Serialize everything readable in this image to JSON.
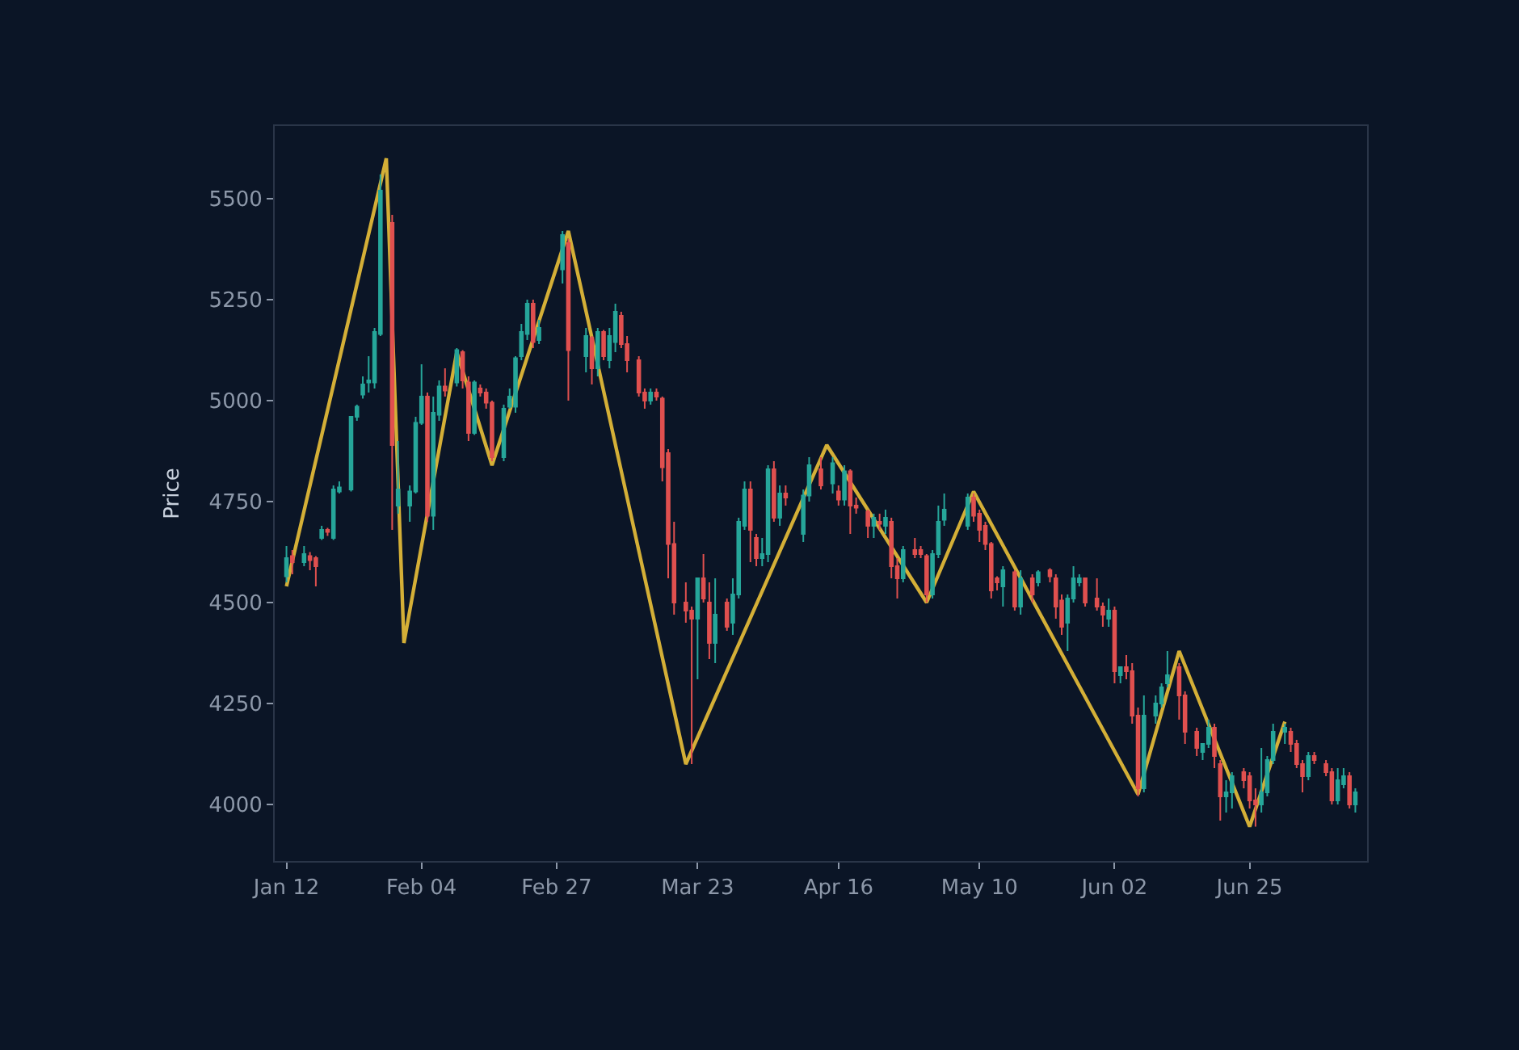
{
  "chart_data": {
    "type": "candlestick",
    "ylabel": "Price",
    "x": [
      "--01-12",
      "--01-13",
      "--01-15",
      "--01-16",
      "--01-17",
      "--01-18",
      "--01-19",
      "--01-20",
      "--01-21",
      "--01-23",
      "--01-24",
      "--01-25",
      "--01-26",
      "--01-27",
      "--01-28",
      "--01-30",
      "--01-31",
      "--02-02",
      "--02-03",
      "--02-04",
      "--02-05",
      "--02-06",
      "--02-07",
      "--02-08",
      "--02-10",
      "--02-11",
      "--02-12",
      "--02-13",
      "--02-14",
      "--02-15",
      "--02-16",
      "--02-18",
      "--02-19",
      "--02-20",
      "--02-21",
      "--02-22",
      "--02-23",
      "--02-24",
      "--02-28",
      "--03-01",
      "--03-04",
      "--03-05",
      "--03-06",
      "--03-07",
      "--03-08",
      "--03-09",
      "--03-10",
      "--03-11",
      "--03-13",
      "--03-14",
      "--03-15",
      "--03-16",
      "--03-17",
      "--03-18",
      "--03-19",
      "--03-21",
      "--03-22",
      "--03-23",
      "--03-24",
      "--03-25",
      "--03-26",
      "--03-28",
      "--03-29",
      "--03-30",
      "--03-31",
      "--04-01",
      "--04-02",
      "--04-03",
      "--04-04",
      "--04-05",
      "--04-06",
      "--04-07",
      "--04-10",
      "--04-11",
      "--04-13",
      "--04-15",
      "--04-16",
      "--04-17",
      "--04-18",
      "--04-19",
      "--04-21",
      "--04-22",
      "--04-23",
      "--04-24",
      "--04-25",
      "--04-26",
      "--04-27",
      "--04-29",
      "--04-30",
      "--05-01",
      "--05-02",
      "--05-03",
      "--05-04",
      "--05-08",
      "--05-09",
      "--05-10",
      "--05-11",
      "--05-12",
      "--05-13",
      "--05-14",
      "--05-16",
      "--05-17",
      "--05-19",
      "--05-20",
      "--05-22",
      "--05-23",
      "--05-24",
      "--05-25",
      "--05-26",
      "--05-27",
      "--05-28",
      "--05-30",
      "--05-31",
      "--06-01",
      "--06-02",
      "--06-03",
      "--06-04",
      "--06-05",
      "--06-06",
      "--06-07",
      "--06-09",
      "--06-10",
      "--06-11",
      "--06-13",
      "--06-14",
      "--06-16",
      "--06-17",
      "--06-18",
      "--06-19",
      "--06-20",
      "--06-21",
      "--06-22",
      "--06-24",
      "--06-25",
      "--06-26",
      "--06-27",
      "--06-28",
      "--06-29",
      "--07-01",
      "--07-02",
      "--07-03",
      "--07-04",
      "--07-05",
      "--07-06",
      "--07-08",
      "--07-09",
      "--07-10",
      "--07-11",
      "--07-12",
      "--07-13"
    ],
    "ohlc": [
      [
        4565,
        4640,
        4550,
        4610
      ],
      [
        4615,
        4630,
        4570,
        4600
      ],
      [
        4600,
        4640,
        4590,
        4620
      ],
      [
        4615,
        4625,
        4580,
        4605
      ],
      [
        4610,
        4615,
        4540,
        4590
      ],
      [
        4660,
        4690,
        4655,
        4680
      ],
      [
        4680,
        4685,
        4665,
        4675
      ],
      [
        4660,
        4790,
        4655,
        4780
      ],
      [
        4775,
        4800,
        4770,
        4785
      ],
      [
        4780,
        4960,
        4775,
        4960
      ],
      [
        4960,
        4990,
        4950,
        4985
      ],
      [
        5015,
        5060,
        5005,
        5040
      ],
      [
        5045,
        5110,
        5020,
        5050
      ],
      [
        5045,
        5180,
        5030,
        5170
      ],
      [
        5165,
        5560,
        5160,
        5520
      ],
      [
        5440,
        5460,
        4680,
        4890
      ],
      [
        4740,
        4900,
        4720,
        4780
      ],
      [
        4740,
        4790,
        4700,
        4775
      ],
      [
        4775,
        4960,
        4770,
        4945
      ],
      [
        4945,
        5090,
        4940,
        5010
      ],
      [
        5010,
        5020,
        4700,
        4715
      ],
      [
        4715,
        5010,
        4680,
        4970
      ],
      [
        4965,
        5050,
        4950,
        5035
      ],
      [
        5035,
        5080,
        5010,
        5025
      ],
      [
        5045,
        5130,
        5035,
        5125
      ],
      [
        5120,
        5125,
        5030,
        5050
      ],
      [
        5045,
        5060,
        4900,
        4920
      ],
      [
        4920,
        5050,
        4915,
        5045
      ],
      [
        5030,
        5040,
        5010,
        5020
      ],
      [
        5020,
        5030,
        4980,
        4995
      ],
      [
        4995,
        5000,
        4850,
        4860
      ],
      [
        4860,
        4990,
        4850,
        4980
      ],
      [
        4985,
        5030,
        4980,
        5010
      ],
      [
        4985,
        5110,
        4970,
        5105
      ],
      [
        5110,
        5190,
        5100,
        5170
      ],
      [
        5165,
        5250,
        5150,
        5240
      ],
      [
        5240,
        5250,
        5130,
        5145
      ],
      [
        5150,
        5200,
        5140,
        5180
      ],
      [
        5325,
        5420,
        5290,
        5410
      ],
      [
        5390,
        5400,
        5000,
        5125
      ],
      [
        5110,
        5180,
        5070,
        5160
      ],
      [
        5155,
        5160,
        5040,
        5080
      ],
      [
        5080,
        5180,
        5060,
        5170
      ],
      [
        5170,
        5175,
        5100,
        5110
      ],
      [
        5100,
        5180,
        5080,
        5160
      ],
      [
        5145,
        5240,
        5120,
        5220
      ],
      [
        5210,
        5220,
        5130,
        5140
      ],
      [
        5140,
        5160,
        5070,
        5100
      ],
      [
        5100,
        5110,
        5010,
        5020
      ],
      [
        5020,
        5030,
        4980,
        5000
      ],
      [
        5000,
        5030,
        4990,
        5020
      ],
      [
        5020,
        5030,
        5000,
        5010
      ],
      [
        5005,
        5010,
        4800,
        4835
      ],
      [
        4870,
        4880,
        4560,
        4645
      ],
      [
        4645,
        4700,
        4470,
        4500
      ],
      [
        4500,
        4550,
        4450,
        4480
      ],
      [
        4480,
        4490,
        4100,
        4460
      ],
      [
        4460,
        4560,
        4310,
        4560
      ],
      [
        4560,
        4620,
        4500,
        4510
      ],
      [
        4500,
        4550,
        4360,
        4400
      ],
      [
        4400,
        4560,
        4350,
        4470
      ],
      [
        4500,
        4510,
        4430,
        4440
      ],
      [
        4450,
        4560,
        4420,
        4520
      ],
      [
        4520,
        4710,
        4510,
        4700
      ],
      [
        4690,
        4800,
        4680,
        4780
      ],
      [
        4780,
        4800,
        4600,
        4680
      ],
      [
        4660,
        4670,
        4590,
        4610
      ],
      [
        4610,
        4660,
        4590,
        4620
      ],
      [
        4620,
        4840,
        4600,
        4830
      ],
      [
        4830,
        4850,
        4700,
        4710
      ],
      [
        4710,
        4790,
        4690,
        4770
      ],
      [
        4770,
        4790,
        4740,
        4760
      ],
      [
        4670,
        4780,
        4650,
        4765
      ],
      [
        4765,
        4860,
        4750,
        4840
      ],
      [
        4830,
        4860,
        4780,
        4790
      ],
      [
        4795,
        4860,
        4770,
        4845
      ],
      [
        4775,
        4790,
        4740,
        4755
      ],
      [
        4755,
        4840,
        4740,
        4825
      ],
      [
        4825,
        4830,
        4670,
        4740
      ],
      [
        4740,
        4760,
        4720,
        4735
      ],
      [
        4725,
        4730,
        4660,
        4690
      ],
      [
        4690,
        4720,
        4660,
        4710
      ],
      [
        4700,
        4720,
        4680,
        4695
      ],
      [
        4690,
        4730,
        4670,
        4710
      ],
      [
        4700,
        4710,
        4560,
        4590
      ],
      [
        4590,
        4610,
        4510,
        4560
      ],
      [
        4560,
        4640,
        4550,
        4630
      ],
      [
        4630,
        4660,
        4610,
        4620
      ],
      [
        4630,
        4640,
        4610,
        4620
      ],
      [
        4615,
        4620,
        4500,
        4520
      ],
      [
        4520,
        4630,
        4510,
        4620
      ],
      [
        4620,
        4740,
        4610,
        4700
      ],
      [
        4705,
        4770,
        4690,
        4730
      ],
      [
        4690,
        4770,
        4680,
        4760
      ],
      [
        4760,
        4770,
        4700,
        4715
      ],
      [
        4720,
        4730,
        4650,
        4680
      ],
      [
        4690,
        4700,
        4630,
        4645
      ],
      [
        4645,
        4650,
        4510,
        4530
      ],
      [
        4560,
        4565,
        4530,
        4550
      ],
      [
        4540,
        4590,
        4490,
        4580
      ],
      [
        4575,
        4580,
        4480,
        4490
      ],
      [
        4490,
        4580,
        4470,
        4560
      ],
      [
        4560,
        4570,
        4500,
        4520
      ],
      [
        4550,
        4580,
        4540,
        4575
      ],
      [
        4580,
        4585,
        4550,
        4565
      ],
      [
        4560,
        4570,
        4460,
        4490
      ],
      [
        4505,
        4520,
        4420,
        4440
      ],
      [
        4450,
        4520,
        4380,
        4510
      ],
      [
        4510,
        4590,
        4500,
        4560
      ],
      [
        4550,
        4570,
        4540,
        4560
      ],
      [
        4560,
        4560,
        4490,
        4500
      ],
      [
        4510,
        4560,
        4480,
        4490
      ],
      [
        4490,
        4500,
        4440,
        4470
      ],
      [
        4460,
        4510,
        4440,
        4480
      ],
      [
        4480,
        4490,
        4300,
        4330
      ],
      [
        4320,
        4340,
        4300,
        4340
      ],
      [
        4340,
        4370,
        4310,
        4330
      ],
      [
        4330,
        4350,
        4200,
        4220
      ],
      [
        4220,
        4240,
        4020,
        4040
      ],
      [
        4040,
        4270,
        4030,
        4220
      ],
      [
        4220,
        4270,
        4200,
        4250
      ],
      [
        4250,
        4300,
        4240,
        4290
      ],
      [
        4300,
        4380,
        4290,
        4320
      ],
      [
        4340,
        4350,
        4210,
        4270
      ],
      [
        4270,
        4280,
        4150,
        4180
      ],
      [
        4180,
        4190,
        4120,
        4140
      ],
      [
        4130,
        4150,
        4110,
        4150
      ],
      [
        4150,
        4210,
        4140,
        4190
      ],
      [
        4190,
        4200,
        4090,
        4120
      ],
      [
        4100,
        4110,
        3960,
        4020
      ],
      [
        4020,
        4060,
        3980,
        4030
      ],
      [
        4030,
        4080,
        3990,
        4070
      ],
      [
        4080,
        4090,
        4040,
        4060
      ],
      [
        4070,
        4080,
        3990,
        4010
      ],
      [
        4010,
        4040,
        3945,
        4000
      ],
      [
        4000,
        4140,
        3980,
        4030
      ],
      [
        4030,
        4120,
        4020,
        4110
      ],
      [
        4110,
        4200,
        4100,
        4180
      ],
      [
        4180,
        4200,
        4150,
        4190
      ],
      [
        4180,
        4190,
        4130,
        4150
      ],
      [
        4150,
        4160,
        4090,
        4100
      ],
      [
        4100,
        4110,
        4030,
        4070
      ],
      [
        4070,
        4130,
        4060,
        4120
      ],
      [
        4120,
        4130,
        4100,
        4110
      ],
      [
        4100,
        4110,
        4070,
        4080
      ],
      [
        4080,
        4090,
        4000,
        4010
      ],
      [
        4010,
        4090,
        4000,
        4060
      ],
      [
        4050,
        4090,
        4040,
        4070
      ],
      [
        4070,
        4080,
        3990,
        4000
      ],
      [
        4000,
        4040,
        3980,
        4030
      ]
    ],
    "colors": [
      "#26a69a",
      "#e0504f",
      "#26a69a",
      "#e0504f",
      "#e0504f",
      "#26a69a",
      "#e0504f",
      "#26a69a",
      "#26a69a",
      "#26a69a",
      "#26a69a",
      "#26a69a",
      "#26a69a",
      "#26a69a",
      "#26a69a",
      "#e0504f",
      "#26a69a",
      "#26a69a",
      "#26a69a",
      "#26a69a",
      "#e0504f",
      "#26a69a",
      "#26a69a",
      "#e0504f",
      "#26a69a",
      "#e0504f",
      "#e0504f",
      "#26a69a",
      "#e0504f",
      "#e0504f",
      "#e0504f",
      "#26a69a",
      "#26a69a",
      "#26a69a",
      "#26a69a",
      "#26a69a",
      "#e0504f",
      "#26a69a",
      "#26a69a",
      "#e0504f",
      "#26a69a",
      "#e0504f",
      "#26a69a",
      "#e0504f",
      "#26a69a",
      "#26a69a",
      "#e0504f",
      "#e0504f",
      "#e0504f",
      "#e0504f",
      "#26a69a",
      "#e0504f",
      "#e0504f",
      "#e0504f",
      "#e0504f",
      "#e0504f",
      "#e0504f",
      "#26a69a",
      "#e0504f",
      "#e0504f",
      "#26a69a",
      "#e0504f",
      "#26a69a",
      "#26a69a",
      "#26a69a",
      "#e0504f",
      "#e0504f",
      "#26a69a",
      "#26a69a",
      "#e0504f",
      "#26a69a",
      "#e0504f",
      "#26a69a",
      "#26a69a",
      "#e0504f",
      "#26a69a",
      "#e0504f",
      "#26a69a",
      "#e0504f",
      "#e0504f",
      "#e0504f",
      "#26a69a",
      "#e0504f",
      "#26a69a",
      "#e0504f",
      "#e0504f",
      "#26a69a",
      "#e0504f",
      "#e0504f",
      "#e0504f",
      "#26a69a",
      "#26a69a",
      "#26a69a",
      "#26a69a",
      "#e0504f",
      "#e0504f",
      "#e0504f",
      "#e0504f",
      "#e0504f",
      "#26a69a",
      "#e0504f",
      "#26a69a",
      "#e0504f",
      "#26a69a",
      "#e0504f",
      "#e0504f",
      "#e0504f",
      "#26a69a",
      "#26a69a",
      "#26a69a",
      "#e0504f",
      "#e0504f",
      "#e0504f",
      "#26a69a",
      "#e0504f",
      "#26a69a",
      "#e0504f",
      "#e0504f",
      "#e0504f",
      "#26a69a",
      "#26a69a",
      "#26a69a",
      "#26a69a",
      "#e0504f",
      "#e0504f",
      "#e0504f",
      "#26a69a",
      "#26a69a",
      "#e0504f",
      "#e0504f",
      "#26a69a",
      "#26a69a",
      "#e0504f",
      "#e0504f",
      "#e0504f",
      "#26a69a",
      "#26a69a",
      "#26a69a",
      "#26a69a",
      "#e0504f",
      "#e0504f",
      "#e0504f",
      "#26a69a",
      "#e0504f",
      "#e0504f",
      "#e0504f",
      "#26a69a",
      "#26a69a",
      "#e0504f",
      "#26a69a"
    ],
    "series": [
      {
        "type": "line",
        "color": "#d4af37",
        "x": [
          "--01-12",
          "--01-29",
          "--02-01",
          "--02-10",
          "--02-16",
          "--03-01",
          "--03-21",
          "--04-14",
          "--05-01",
          "--05-09",
          "--06-06",
          "--06-13",
          "--06-25",
          "--07-01"
        ],
        "values": [
          4540,
          5600,
          4400,
          5120,
          4840,
          5420,
          4100,
          4890,
          4500,
          4775,
          4025,
          4380,
          3945,
          4205
        ]
      }
    ],
    "xlim": [
      "--01-10",
      "--07-15"
    ],
    "xticks": [
      {
        "value": "--01-12",
        "label": "Jan 12"
      },
      {
        "value": "--02-04",
        "label": "Feb 04"
      },
      {
        "value": "--02-27",
        "label": "Feb 27"
      },
      {
        "value": "--03-23",
        "label": "Mar 23"
      },
      {
        "value": "--04-16",
        "label": "Apr 16"
      },
      {
        "value": "--05-10",
        "label": "May 10"
      },
      {
        "value": "--06-02",
        "label": "Jun 02"
      },
      {
        "value": "--06-25",
        "label": "Jun 25"
      }
    ],
    "ylim": [
      3860,
      5680
    ],
    "yticks": [
      4000,
      4250,
      4500,
      4750,
      5000,
      5250,
      5500
    ]
  }
}
